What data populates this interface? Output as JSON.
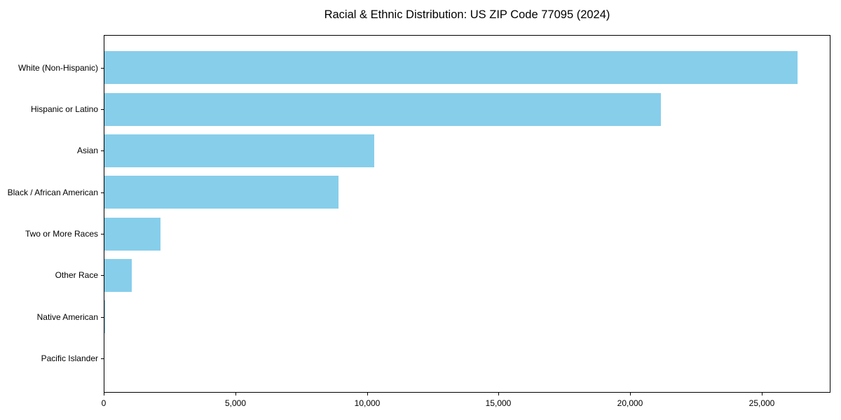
{
  "chart_data": {
    "type": "bar",
    "orientation": "horizontal",
    "title": "Racial & Ethnic Distribution: US ZIP Code 77095 (2024)",
    "categories": [
      "White (Non-Hispanic)",
      "Hispanic or Latino",
      "Asian",
      "Black / African American",
      "Two or More Races",
      "Other Race",
      "Native American",
      "Pacific Islander"
    ],
    "values": [
      26320,
      21140,
      10250,
      8890,
      2130,
      1040,
      20,
      10
    ],
    "xlabel": "",
    "ylabel": "",
    "xlim": [
      0,
      27600
    ],
    "xticks": [
      0,
      5000,
      10000,
      15000,
      20000,
      25000
    ],
    "xtick_labels": [
      "0",
      "5,000",
      "10,000",
      "15,000",
      "20,000",
      "25,000"
    ],
    "bar_color": "#87CEEB",
    "text_color": "#000000",
    "background_color": "#ffffff",
    "grid": false,
    "legend": null,
    "frame": "full-box"
  }
}
